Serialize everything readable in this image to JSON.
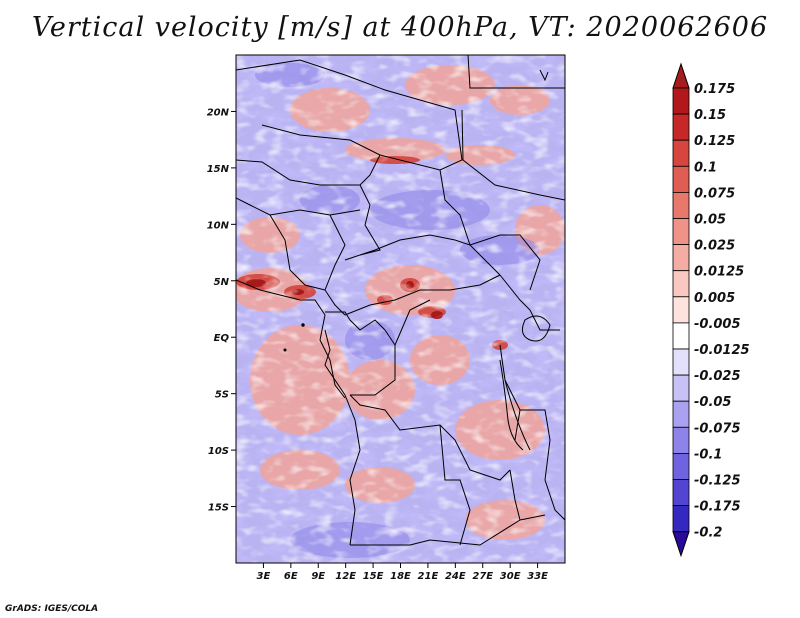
{
  "title": "Vertical velocity [m/s] at 400hPa, VT: 2020062606",
  "credit": "GrADS: IGES/COLA",
  "map": {
    "lon_range": [
      0,
      36
    ],
    "lat_range": [
      -20,
      25
    ],
    "lat_ticks": [
      {
        "value": 20,
        "label": "20N"
      },
      {
        "value": 15,
        "label": "15N"
      },
      {
        "value": 10,
        "label": "10N"
      },
      {
        "value": 5,
        "label": "5N"
      },
      {
        "value": 0,
        "label": "EQ"
      },
      {
        "value": -5,
        "label": "5S"
      },
      {
        "value": -10,
        "label": "10S"
      },
      {
        "value": -15,
        "label": "15S"
      }
    ],
    "lon_ticks": [
      {
        "value": 3,
        "label": "3E"
      },
      {
        "value": 6,
        "label": "6E"
      },
      {
        "value": 9,
        "label": "9E"
      },
      {
        "value": 12,
        "label": "12E"
      },
      {
        "value": 15,
        "label": "15E"
      },
      {
        "value": 18,
        "label": "18E"
      },
      {
        "value": 21,
        "label": "21E"
      },
      {
        "value": 24,
        "label": "24E"
      },
      {
        "value": 27,
        "label": "27E"
      },
      {
        "value": 30,
        "label": "30E"
      },
      {
        "value": 33,
        "label": "33E"
      }
    ]
  },
  "colorbar": {
    "levels": [
      {
        "label": "0.175",
        "color": "#b2181b"
      },
      {
        "label": "0.15",
        "color": "#c62828"
      },
      {
        "label": "0.125",
        "color": "#d6453e"
      },
      {
        "label": "0.1",
        "color": "#e05d54"
      },
      {
        "label": "0.075",
        "color": "#e8776c"
      },
      {
        "label": "0.05",
        "color": "#ef9288"
      },
      {
        "label": "0.025",
        "color": "#f5aca3"
      },
      {
        "label": "0.0125",
        "color": "#f9c8c1"
      },
      {
        "label": "0.005",
        "color": "#fde2dd"
      },
      {
        "label": "-0.005",
        "color": "#ffffff"
      },
      {
        "label": "-0.0125",
        "color": "#e3e0fb"
      },
      {
        "label": "-0.025",
        "color": "#c7c1f6"
      },
      {
        "label": "-0.05",
        "color": "#aaa2f0"
      },
      {
        "label": "-0.075",
        "color": "#8d83e9"
      },
      {
        "label": "-0.1",
        "color": "#6f63e0"
      },
      {
        "label": "-0.125",
        "color": "#5345d2"
      },
      {
        "label": "-0.175",
        "color": "#3528c0"
      },
      {
        "label": "-0.2",
        "color": "#1e10a8"
      }
    ],
    "top_arrow_color": "#a51c1c",
    "bottom_arrow_color": "#2a0a9a"
  }
}
